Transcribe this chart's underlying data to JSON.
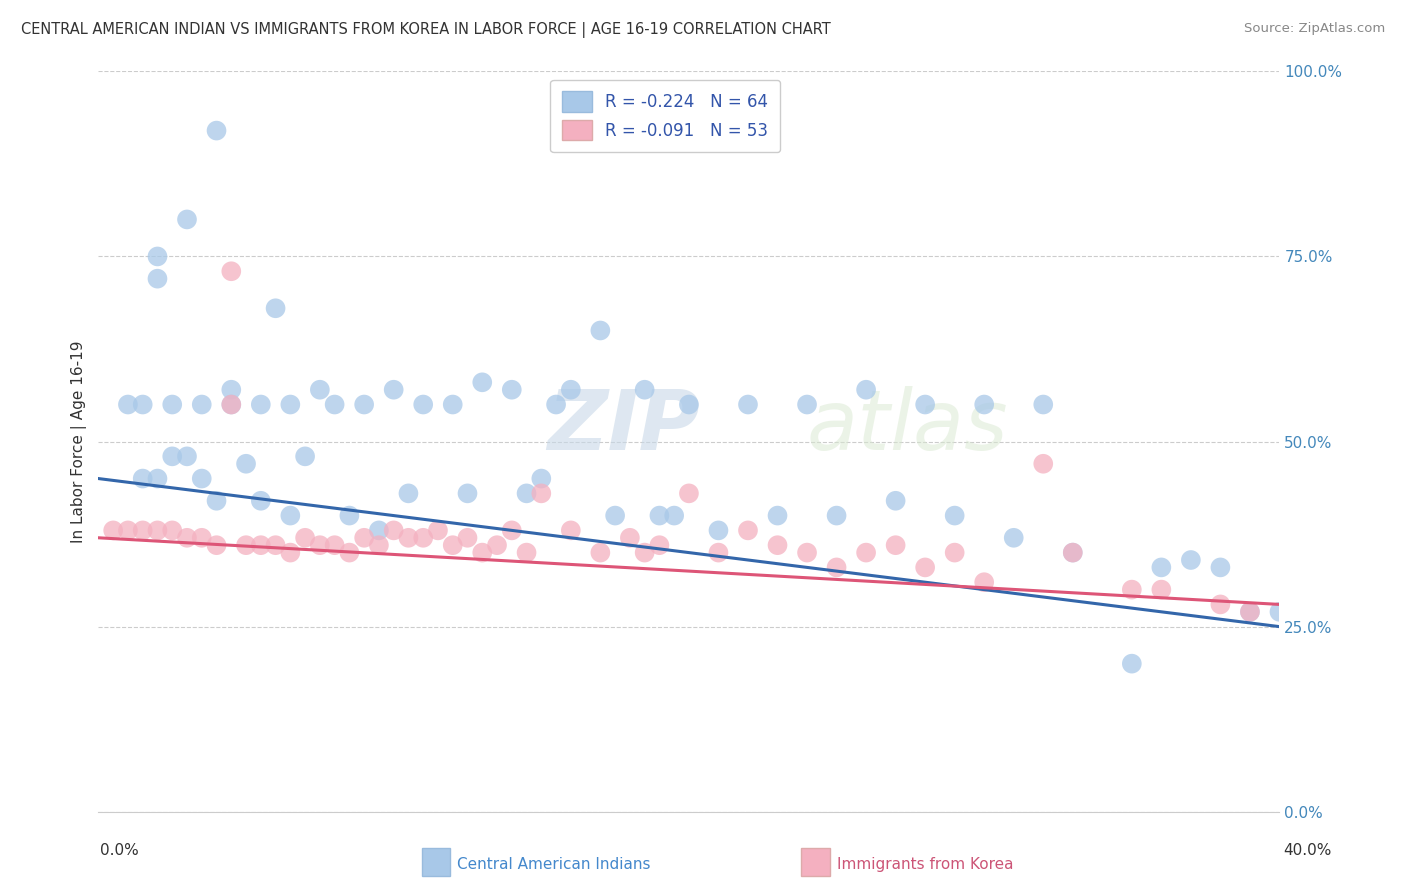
{
  "title": "CENTRAL AMERICAN INDIAN VS IMMIGRANTS FROM KOREA IN LABOR FORCE | AGE 16-19 CORRELATION CHART",
  "source": "Source: ZipAtlas.com",
  "ylabel": "In Labor Force | Age 16-19",
  "xlim": [
    0.0,
    40.0
  ],
  "ylim": [
    0.0,
    100.0
  ],
  "yticks": [
    0.0,
    25.0,
    50.0,
    75.0,
    100.0
  ],
  "ytick_labels": [
    "0.0%",
    "25.0%",
    "50.0%",
    "75.0%",
    "100.0%"
  ],
  "xtick_left": "0.0%",
  "xtick_right": "40.0%",
  "blue_R": -0.224,
  "blue_N": 64,
  "pink_R": -0.091,
  "pink_N": 53,
  "blue_label": "Central American Indians",
  "pink_label": "Immigrants from Korea",
  "blue_color": "#a8c8e8",
  "pink_color": "#f4b0c0",
  "blue_line_color": "#3366aa",
  "pink_line_color": "#dd5577",
  "background_color": "#ffffff",
  "grid_color": "#cccccc",
  "watermark_zip": "ZIP",
  "watermark_atlas": "atlas",
  "blue_points_x": [
    1.5,
    2.5,
    3.5,
    4.5,
    2.0,
    2.0,
    3.0,
    4.0,
    4.5,
    5.5,
    6.5,
    7.5,
    8.0,
    9.0,
    10.0,
    11.0,
    12.0,
    13.0,
    14.0,
    15.5,
    17.0,
    18.5,
    20.0,
    22.0,
    24.0,
    26.0,
    28.0,
    30.0,
    32.0,
    35.0,
    36.0,
    38.0,
    1.0,
    1.5,
    2.0,
    2.5,
    3.0,
    3.5,
    4.0,
    5.0,
    5.5,
    6.5,
    7.0,
    8.5,
    10.5,
    12.5,
    14.5,
    15.0,
    16.0,
    17.5,
    19.0,
    21.0,
    23.0,
    25.0,
    27.0,
    29.0,
    31.0,
    33.0,
    37.0,
    6.0,
    19.5,
    40.0,
    39.0,
    9.5
  ],
  "blue_points_y": [
    55.0,
    55.0,
    55.0,
    57.0,
    75.0,
    72.0,
    80.0,
    92.0,
    55.0,
    55.0,
    55.0,
    57.0,
    55.0,
    55.0,
    57.0,
    55.0,
    55.0,
    58.0,
    57.0,
    55.0,
    65.0,
    57.0,
    55.0,
    55.0,
    55.0,
    57.0,
    55.0,
    55.0,
    55.0,
    20.0,
    33.0,
    33.0,
    55.0,
    45.0,
    45.0,
    48.0,
    48.0,
    45.0,
    42.0,
    47.0,
    42.0,
    40.0,
    48.0,
    40.0,
    43.0,
    43.0,
    43.0,
    45.0,
    57.0,
    40.0,
    40.0,
    38.0,
    40.0,
    40.0,
    42.0,
    40.0,
    37.0,
    35.0,
    34.0,
    68.0,
    40.0,
    27.0,
    27.0,
    38.0
  ],
  "pink_points_x": [
    0.5,
    1.0,
    1.5,
    2.0,
    2.5,
    3.0,
    3.5,
    4.0,
    4.5,
    5.0,
    5.5,
    6.0,
    6.5,
    7.0,
    7.5,
    8.0,
    8.5,
    9.0,
    9.5,
    10.0,
    11.0,
    12.0,
    13.0,
    13.5,
    14.0,
    14.5,
    15.0,
    16.0,
    17.0,
    18.0,
    19.0,
    20.0,
    21.0,
    22.0,
    23.0,
    24.0,
    25.0,
    26.0,
    27.0,
    28.0,
    29.0,
    30.0,
    32.0,
    10.5,
    11.5,
    12.5,
    4.5,
    18.5,
    33.0,
    35.0,
    36.0,
    38.0,
    39.0
  ],
  "pink_points_y": [
    38.0,
    38.0,
    38.0,
    38.0,
    38.0,
    37.0,
    37.0,
    36.0,
    55.0,
    36.0,
    36.0,
    36.0,
    35.0,
    37.0,
    36.0,
    36.0,
    35.0,
    37.0,
    36.0,
    38.0,
    37.0,
    36.0,
    35.0,
    36.0,
    38.0,
    35.0,
    43.0,
    38.0,
    35.0,
    37.0,
    36.0,
    43.0,
    35.0,
    38.0,
    36.0,
    35.0,
    33.0,
    35.0,
    36.0,
    33.0,
    35.0,
    31.0,
    47.0,
    37.0,
    38.0,
    37.0,
    73.0,
    35.0,
    35.0,
    30.0,
    30.0,
    28.0,
    27.0
  ]
}
